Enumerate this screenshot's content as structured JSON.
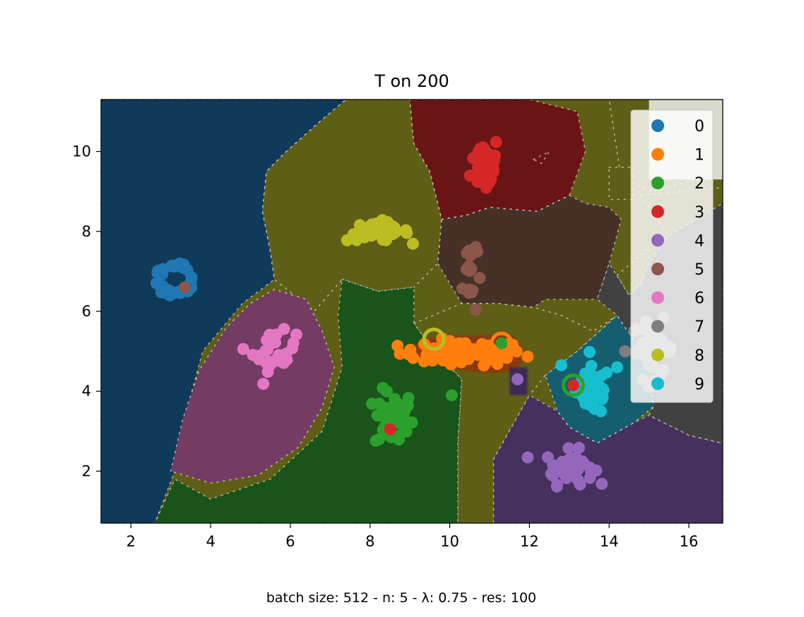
{
  "chart_data": {
    "type": "scatter",
    "title": "T on 200",
    "footer": "batch size: 512 - n: 5 - λ: 0.75 - res: 100",
    "xlim": [
      1.25,
      16.85
    ],
    "ylim": [
      0.7,
      11.3
    ],
    "xticks": [
      2,
      4,
      6,
      8,
      10,
      12,
      14,
      16
    ],
    "yticks": [
      2,
      4,
      6,
      8,
      10
    ],
    "grid": false,
    "legend_position": "top-right",
    "series": [
      {
        "name": "0",
        "color": "#1f77b4"
      },
      {
        "name": "1",
        "color": "#ff7f0e"
      },
      {
        "name": "2",
        "color": "#2ca02c"
      },
      {
        "name": "3",
        "color": "#d62728"
      },
      {
        "name": "4",
        "color": "#9467bd"
      },
      {
        "name": "5",
        "color": "#8c564b"
      },
      {
        "name": "6",
        "color": "#e377c2"
      },
      {
        "name": "7",
        "color": "#7f7f7f"
      },
      {
        "name": "8",
        "color": "#bcbd22"
      },
      {
        "name": "9",
        "color": "#17becf"
      }
    ],
    "clusters": [
      {
        "class": 0,
        "cx": 3.1,
        "cy": 6.8,
        "rx": 0.45,
        "ry": 0.4,
        "n": 40,
        "ring": true
      },
      {
        "class": 1,
        "cx": 10.3,
        "cy": 4.95,
        "rx": 1.3,
        "ry": 0.25,
        "n": 70
      },
      {
        "class": 2,
        "cx": 8.6,
        "cy": 3.3,
        "rx": 0.4,
        "ry": 0.6,
        "n": 40
      },
      {
        "class": 3,
        "cx": 10.9,
        "cy": 9.7,
        "rx": 0.3,
        "ry": 0.6,
        "n": 40
      },
      {
        "class": 4,
        "cx": 13.0,
        "cy": 2.1,
        "rx": 0.5,
        "ry": 0.35,
        "n": 45
      },
      {
        "class": 5,
        "cx": 10.5,
        "cy": 7.0,
        "rx": 0.15,
        "ry": 1.0,
        "n": 18
      },
      {
        "class": 6,
        "cx": 5.6,
        "cy": 5.0,
        "rx": 0.45,
        "ry": 0.4,
        "n": 30
      },
      {
        "class": 7,
        "cx": 15.1,
        "cy": 5.05,
        "rx": 0.45,
        "ry": 0.6,
        "n": 40
      },
      {
        "class": 8,
        "cx": 8.2,
        "cy": 8.0,
        "rx": 0.65,
        "ry": 0.2,
        "n": 40
      },
      {
        "class": 9,
        "cx": 13.6,
        "cy": 4.0,
        "rx": 0.35,
        "ry": 0.5,
        "n": 50
      }
    ],
    "outliers": [
      {
        "class": 5,
        "x": 3.35,
        "y": 6.6
      },
      {
        "class": 3,
        "x": 8.5,
        "y": 3.05
      },
      {
        "class": 2,
        "x": 11.3,
        "y": 5.2
      },
      {
        "class": 3,
        "x": 13.1,
        "y": 4.15
      },
      {
        "class": 4,
        "x": 11.7,
        "y": 4.3
      },
      {
        "class": 2,
        "x": 10.05,
        "y": 3.9
      },
      {
        "class": 7,
        "x": 14.4,
        "y": 5.0
      },
      {
        "class": 9,
        "x": 12.8,
        "y": 4.65
      },
      {
        "class": 9,
        "x": 14.2,
        "y": 4.6
      }
    ],
    "rings": [
      {
        "class": 8,
        "x": 9.6,
        "y": 5.3
      },
      {
        "class": 1,
        "x": 11.3,
        "y": 5.2
      },
      {
        "class": 2,
        "x": 13.1,
        "y": 4.15
      },
      {
        "class": 2,
        "x": 8.5,
        "y": 3.05
      }
    ],
    "regions": [
      {
        "class": 0,
        "color": "#0f3a5a",
        "points": [
          [
            1.25,
            11.3
          ],
          [
            7.4,
            11.3
          ],
          [
            6.8,
            10.8
          ],
          [
            5.9,
            10.0
          ],
          [
            5.4,
            9.5
          ],
          [
            5.3,
            8.5
          ],
          [
            5.5,
            7.5
          ],
          [
            5.6,
            6.8
          ],
          [
            4.8,
            6.2
          ],
          [
            3.8,
            5.0
          ],
          [
            3.4,
            3.5
          ],
          [
            3.1,
            2.0
          ],
          [
            2.6,
            0.7
          ],
          [
            1.25,
            0.7
          ]
        ]
      },
      {
        "class": 8,
        "color": "#5f5e16",
        "points": [
          [
            7.4,
            11.3
          ],
          [
            9.0,
            11.3
          ],
          [
            9.1,
            10.2
          ],
          [
            9.5,
            9.5
          ],
          [
            9.8,
            8.3
          ],
          [
            9.7,
            7.2
          ],
          [
            9.1,
            6.6
          ],
          [
            8.2,
            6.5
          ],
          [
            7.3,
            6.8
          ],
          [
            6.6,
            6.0
          ],
          [
            5.6,
            6.8
          ],
          [
            5.5,
            7.5
          ],
          [
            5.3,
            8.5
          ],
          [
            5.4,
            9.5
          ],
          [
            5.9,
            10.0
          ],
          [
            6.8,
            10.8
          ]
        ]
      },
      {
        "class": 8,
        "color": "#5f5e16",
        "points": [
          [
            9.1,
            5.7
          ],
          [
            10.3,
            6.2
          ],
          [
            11.2,
            6.2
          ],
          [
            12.1,
            6.1
          ],
          [
            12.8,
            5.9
          ],
          [
            13.6,
            5.5
          ],
          [
            14.2,
            5.9
          ],
          [
            13.2,
            5.0
          ],
          [
            12.4,
            4.4
          ],
          [
            12.0,
            3.9
          ],
          [
            11.1,
            2.3
          ],
          [
            11.1,
            0.7
          ],
          [
            10.2,
            0.7
          ],
          [
            10.2,
            2.7
          ],
          [
            10.3,
            4.3
          ],
          [
            9.6,
            5.0
          ],
          [
            9.1,
            5.7
          ]
        ]
      },
      {
        "class": 8,
        "color": "#5f5e16",
        "points": [
          [
            14.0,
            11.3
          ],
          [
            16.85,
            11.3
          ],
          [
            16.85,
            9.5
          ],
          [
            15.1,
            9.0
          ],
          [
            14.3,
            9.3
          ],
          [
            14.0,
            11.3
          ]
        ]
      },
      {
        "class": 8,
        "color": "#5f5e16",
        "points": [
          [
            14.0,
            9.6
          ],
          [
            14.6,
            9.6
          ],
          [
            14.6,
            8.8
          ],
          [
            14.0,
            8.8
          ]
        ]
      },
      {
        "class": 8,
        "color": "#5f5e16",
        "points": [
          [
            14.8,
            8.9
          ],
          [
            16.85,
            9.1
          ],
          [
            16.85,
            7.3
          ],
          [
            15.5,
            7.9
          ],
          [
            14.8,
            8.9
          ]
        ]
      },
      {
        "class": 8,
        "color": "#5f5e16",
        "points": [
          [
            14.2,
            6.9
          ],
          [
            15.0,
            7.6
          ],
          [
            15.0,
            7.0
          ],
          [
            14.5,
            6.4
          ]
        ]
      },
      {
        "class": 3,
        "color": "#6a1515",
        "points": [
          [
            9.0,
            11.3
          ],
          [
            11.2,
            11.3
          ],
          [
            12.0,
            11.3
          ],
          [
            13.2,
            11.0
          ],
          [
            13.4,
            10.0
          ],
          [
            13.0,
            8.9
          ],
          [
            12.2,
            8.5
          ],
          [
            11.0,
            8.6
          ],
          [
            10.4,
            8.4
          ],
          [
            9.8,
            8.3
          ],
          [
            9.5,
            9.5
          ],
          [
            9.1,
            10.2
          ]
        ]
      },
      {
        "class": 3,
        "color": "#6a1515",
        "points": [
          [
            12.1,
            9.8
          ],
          [
            12.5,
            10.0
          ],
          [
            12.3,
            9.7
          ]
        ]
      },
      {
        "class": 5,
        "color": "#473028",
        "points": [
          [
            9.8,
            8.3
          ],
          [
            10.4,
            8.4
          ],
          [
            11.0,
            8.6
          ],
          [
            12.2,
            8.5
          ],
          [
            13.0,
            8.9
          ],
          [
            13.4,
            8.7
          ],
          [
            14.0,
            8.6
          ],
          [
            14.3,
            8.3
          ],
          [
            14.0,
            7.2
          ],
          [
            13.7,
            6.3
          ],
          [
            13.2,
            6.3
          ],
          [
            12.4,
            6.3
          ],
          [
            12.1,
            6.1
          ],
          [
            11.2,
            6.2
          ],
          [
            10.3,
            6.2
          ],
          [
            9.7,
            7.2
          ]
        ]
      },
      {
        "class": 2,
        "color": "#19541a",
        "points": [
          [
            7.3,
            6.8
          ],
          [
            8.2,
            6.5
          ],
          [
            9.1,
            6.6
          ],
          [
            9.1,
            5.7
          ],
          [
            9.6,
            5.0
          ],
          [
            10.3,
            4.3
          ],
          [
            10.2,
            2.7
          ],
          [
            10.2,
            0.7
          ],
          [
            2.6,
            0.7
          ],
          [
            3.1,
            1.8
          ],
          [
            4.0,
            1.3
          ],
          [
            5.5,
            1.8
          ],
          [
            6.8,
            3.0
          ],
          [
            7.3,
            4.6
          ],
          [
            7.2,
            5.9
          ],
          [
            7.3,
            6.8
          ]
        ]
      },
      {
        "class": 6,
        "color": "#743b63",
        "points": [
          [
            3.0,
            2.0
          ],
          [
            3.3,
            3.3
          ],
          [
            3.7,
            4.5
          ],
          [
            4.4,
            5.6
          ],
          [
            5.0,
            6.2
          ],
          [
            5.6,
            6.55
          ],
          [
            6.4,
            6.3
          ],
          [
            6.8,
            5.5
          ],
          [
            7.1,
            4.6
          ],
          [
            6.8,
            3.6
          ],
          [
            6.2,
            2.6
          ],
          [
            5.2,
            1.9
          ],
          [
            4.0,
            1.7
          ],
          [
            3.0,
            2.0
          ]
        ]
      },
      {
        "class": 9,
        "color": "#145e6f",
        "points": [
          [
            12.4,
            4.4
          ],
          [
            13.2,
            5.0
          ],
          [
            14.2,
            5.9
          ],
          [
            14.6,
            5.3
          ],
          [
            15.0,
            4.9
          ],
          [
            15.1,
            3.6
          ],
          [
            14.6,
            3.2
          ],
          [
            13.7,
            2.7
          ],
          [
            13.0,
            3.1
          ],
          [
            12.7,
            3.5
          ],
          [
            12.4,
            4.4
          ]
        ]
      },
      {
        "class": 4,
        "color": "#46305d",
        "points": [
          [
            11.1,
            0.7
          ],
          [
            16.85,
            0.7
          ],
          [
            16.85,
            2.7
          ],
          [
            16.0,
            2.9
          ],
          [
            15.0,
            3.4
          ],
          [
            14.6,
            3.2
          ],
          [
            13.7,
            2.7
          ],
          [
            13.0,
            3.1
          ],
          [
            12.7,
            3.5
          ],
          [
            12.0,
            3.9
          ],
          [
            11.1,
            2.3
          ]
        ]
      },
      {
        "class": 7,
        "color": "#414141",
        "points": [
          [
            14.8,
            6.7
          ],
          [
            15.0,
            7.2
          ],
          [
            15.5,
            7.9
          ],
          [
            16.85,
            8.7
          ],
          [
            16.85,
            2.7
          ],
          [
            16.0,
            2.9
          ],
          [
            15.0,
            3.4
          ],
          [
            15.1,
            3.6
          ],
          [
            15.0,
            4.9
          ],
          [
            14.6,
            5.3
          ],
          [
            14.2,
            5.9
          ],
          [
            13.7,
            6.3
          ],
          [
            14.0,
            7.2
          ],
          [
            14.5,
            6.4
          ],
          [
            14.8,
            6.7
          ]
        ]
      }
    ],
    "highlights": [
      {
        "class": 1,
        "color": "#8a3a0e",
        "points": [
          [
            9.0,
            5.1
          ],
          [
            9.5,
            5.35
          ],
          [
            10.5,
            5.4
          ],
          [
            11.6,
            5.4
          ],
          [
            11.9,
            5.0
          ],
          [
            11.7,
            4.5
          ],
          [
            10.9,
            4.45
          ],
          [
            9.9,
            4.6
          ],
          [
            9.0,
            4.85
          ]
        ]
      },
      {
        "class": 4,
        "color": "#3d2a55",
        "points": [
          [
            11.5,
            4.6
          ],
          [
            11.95,
            4.6
          ],
          [
            11.95,
            3.9
          ],
          [
            11.5,
            3.9
          ]
        ]
      }
    ],
    "light_overlay": {
      "color": "#d9d9cc",
      "points": [
        [
          15.0,
          11.3
        ],
        [
          16.85,
          11.3
        ],
        [
          16.85,
          9.3
        ],
        [
          15.0,
          9.3
        ]
      ]
    }
  }
}
